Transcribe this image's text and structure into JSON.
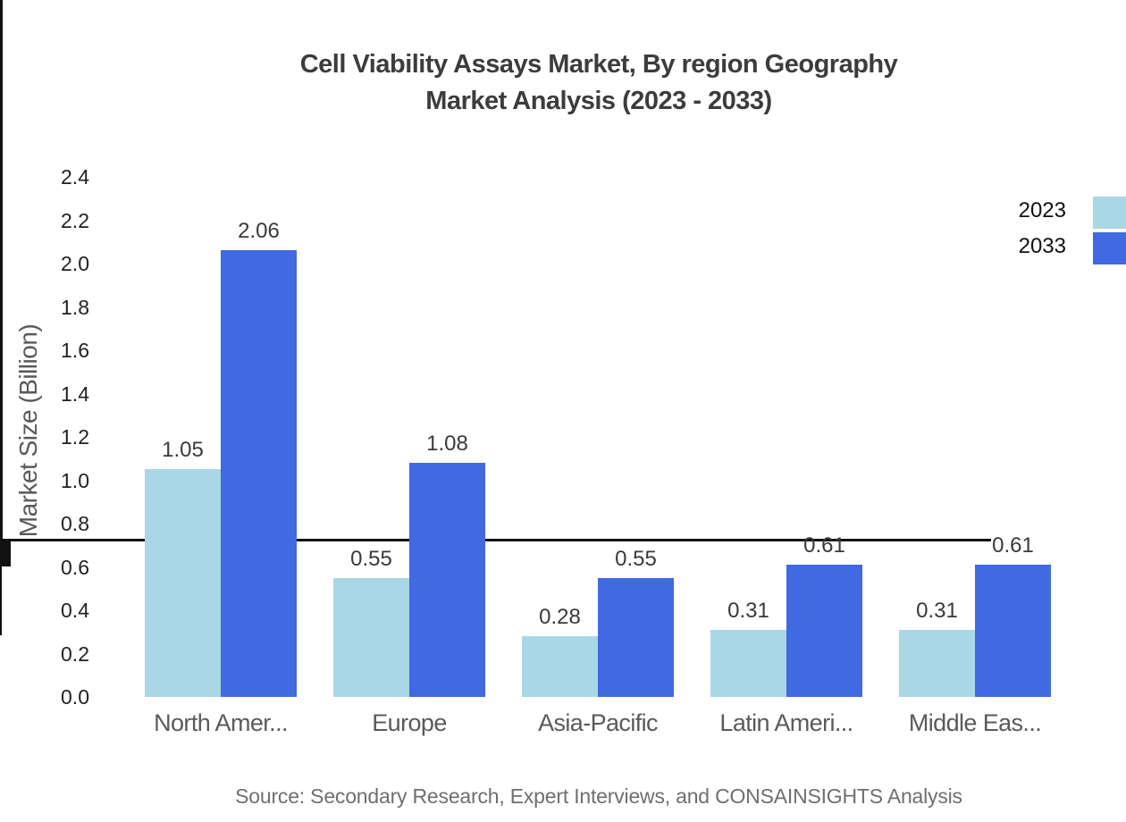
{
  "title": {
    "line1": "Cell Viability Assays Market, By region Geography",
    "line2": "Market Analysis (2023 - 2033)"
  },
  "y_axis": {
    "label": "Market Size (Billion)",
    "ticks": [
      "0.0",
      "0.2",
      "0.4",
      "0.6",
      "0.8",
      "1.0",
      "1.2",
      "1.4",
      "1.6",
      "1.8",
      "2.0",
      "2.2",
      "2.4"
    ]
  },
  "legend": [
    {
      "label": "2023",
      "color": "#aad7e6"
    },
    {
      "label": "2033",
      "color": "#4169e1"
    }
  ],
  "source": "Source: Secondary Research, Expert Interviews, and CONSAINSIGHTS Analysis",
  "chart_data": {
    "type": "bar",
    "title": "Cell Viability Assays Market, By region Geography Market Analysis (2023 - 2033)",
    "categories": [
      "North Amer...",
      "Europe",
      "Asia-Pacific",
      "Latin Ameri...",
      "Middle Eas..."
    ],
    "series": [
      {
        "name": "2023",
        "color": "#aad7e6",
        "values": [
          1.05,
          0.55,
          0.28,
          0.31,
          0.31
        ]
      },
      {
        "name": "2033",
        "color": "#4169e1",
        "values": [
          2.06,
          1.08,
          0.55,
          0.61,
          0.61
        ]
      }
    ],
    "value_labels": [
      "1.05",
      "2.06",
      "0.55",
      "1.08",
      "0.28",
      "0.55",
      "0.31",
      "0.61",
      "0.31",
      "0.61"
    ],
    "xlabel": "",
    "ylabel": "Market Size (Billion)",
    "ylim": [
      0,
      2.4
    ],
    "ytick_step": 0.2,
    "grid": false,
    "legend_position": "top-right"
  }
}
